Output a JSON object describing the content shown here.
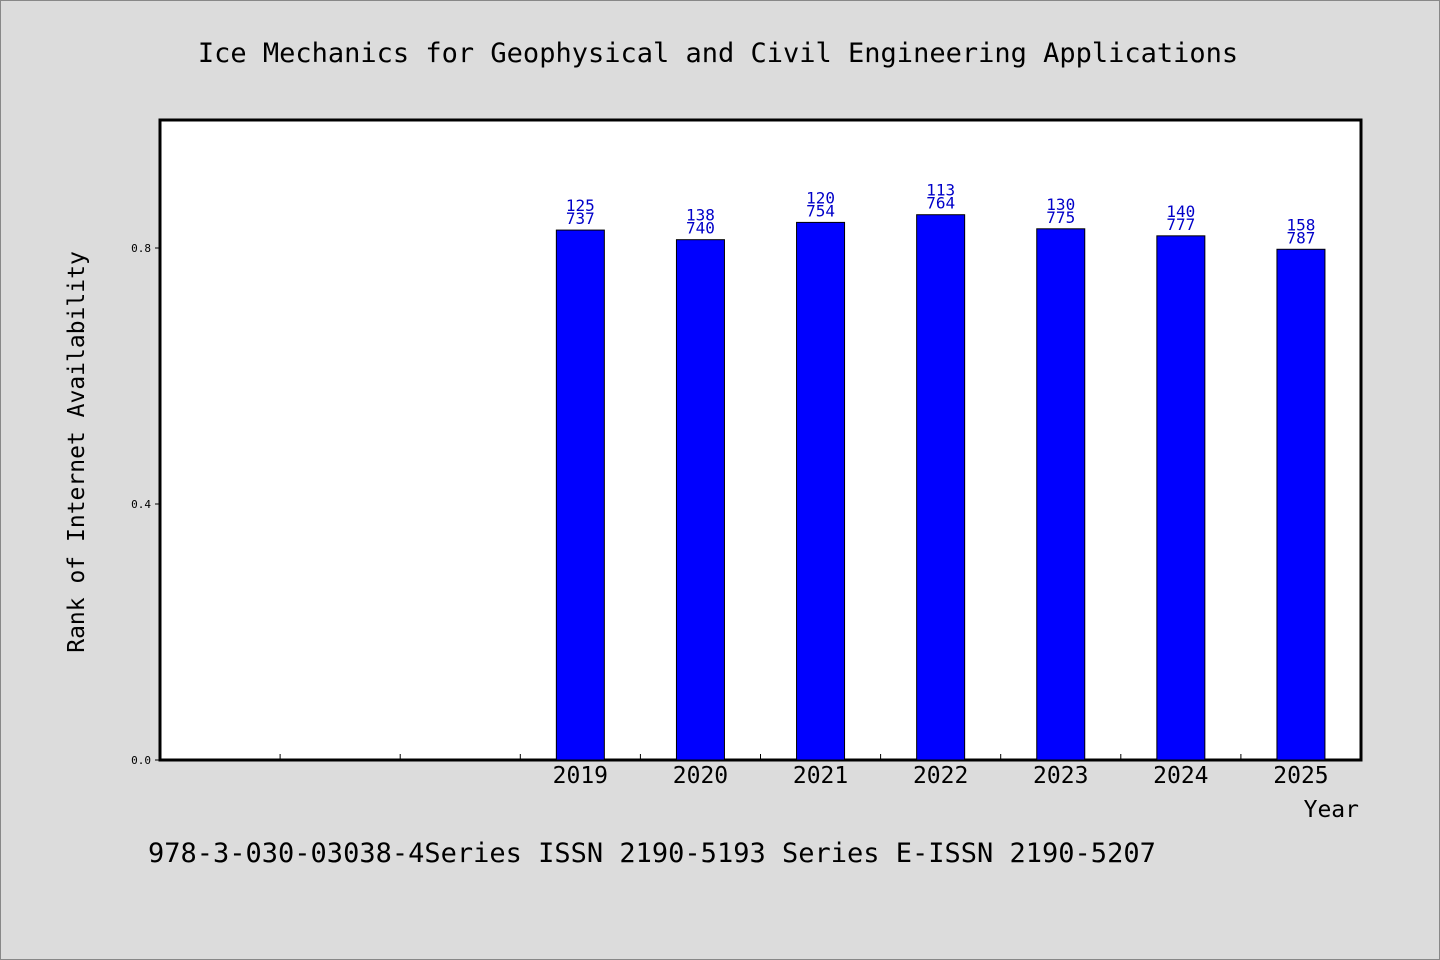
{
  "chart_data": {
    "type": "bar",
    "title": "Ice Mechanics for Geophysical and Civil Engineering Applications",
    "xlabel": "Year",
    "ylabel": "Rank of Internet Availability",
    "categories": [
      "",
      "",
      "",
      "2019",
      "2020",
      "2021",
      "2022",
      "2023",
      "2024",
      "2025"
    ],
    "values": [
      null,
      null,
      null,
      0.828,
      0.813,
      0.84,
      0.852,
      0.83,
      0.819,
      0.798
    ],
    "data_labels": [
      null,
      null,
      null,
      [
        "125",
        "737"
      ],
      [
        "138",
        "740"
      ],
      [
        "120",
        "754"
      ],
      [
        "113",
        "764"
      ],
      [
        "130",
        "775"
      ],
      [
        "140",
        "777"
      ],
      [
        "158",
        "787"
      ]
    ],
    "yticks": [
      0.0,
      0.4,
      0.8
    ],
    "ytick_labels": [
      "0.0",
      "0.4",
      "0.8"
    ],
    "ylim": [
      0,
      1.0
    ],
    "grid": false,
    "bar_color": "#0000ff",
    "label_color": "#0000c8"
  },
  "footer": "978-3-030-03038-4Series ISSN 2190-5193 Series E-ISSN 2190-5207"
}
